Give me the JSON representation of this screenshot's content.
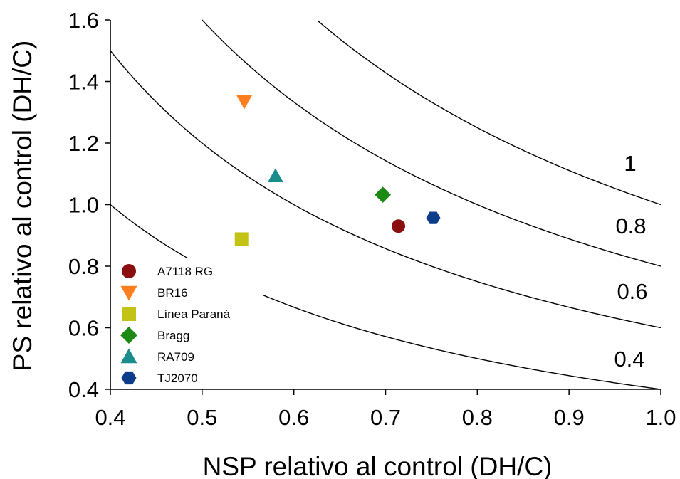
{
  "chart_data": {
    "type": "scatter",
    "xlabel": "NSP relativo al control (DH/C)",
    "ylabel": "PS relativo al control (DH/C)",
    "xlim": [
      0.4,
      1.0
    ],
    "ylim": [
      0.4,
      1.6
    ],
    "xticks": [
      "0.4",
      "0.5",
      "0.6",
      "0.7",
      "0.8",
      "0.9",
      "1.0"
    ],
    "yticks": [
      "0.4",
      "0.6",
      "0.8",
      "1.0",
      "1.2",
      "1.4",
      "1.6"
    ],
    "isolines": [
      {
        "label": "1",
        "k": 1.0
      },
      {
        "label": "0.8",
        "k": 0.8
      },
      {
        "label": "0.6",
        "k": 0.6
      },
      {
        "label": "0.4",
        "k": 0.4
      }
    ],
    "legend_position": "bottom-left",
    "series": [
      {
        "name": "A7118 RG",
        "marker": "circle",
        "color": "#8b0f0f",
        "x": 0.714,
        "y": 0.93
      },
      {
        "name": "BR16",
        "marker": "triangle-down",
        "color": "#ff7f1e",
        "x": 0.546,
        "y": 1.335
      },
      {
        "name": "Línea Paraná",
        "marker": "square",
        "color": "#c3c315",
        "x": 0.543,
        "y": 0.888
      },
      {
        "name": "Bragg",
        "marker": "diamond",
        "color": "#1a8a14",
        "x": 0.697,
        "y": 1.032
      },
      {
        "name": "RA709",
        "marker": "triangle-up",
        "color": "#1a8c8c",
        "x": 0.58,
        "y": 1.093
      },
      {
        "name": "TJ2070",
        "marker": "hexagon",
        "color": "#0b3d8a",
        "x": 0.752,
        "y": 0.957
      }
    ]
  }
}
